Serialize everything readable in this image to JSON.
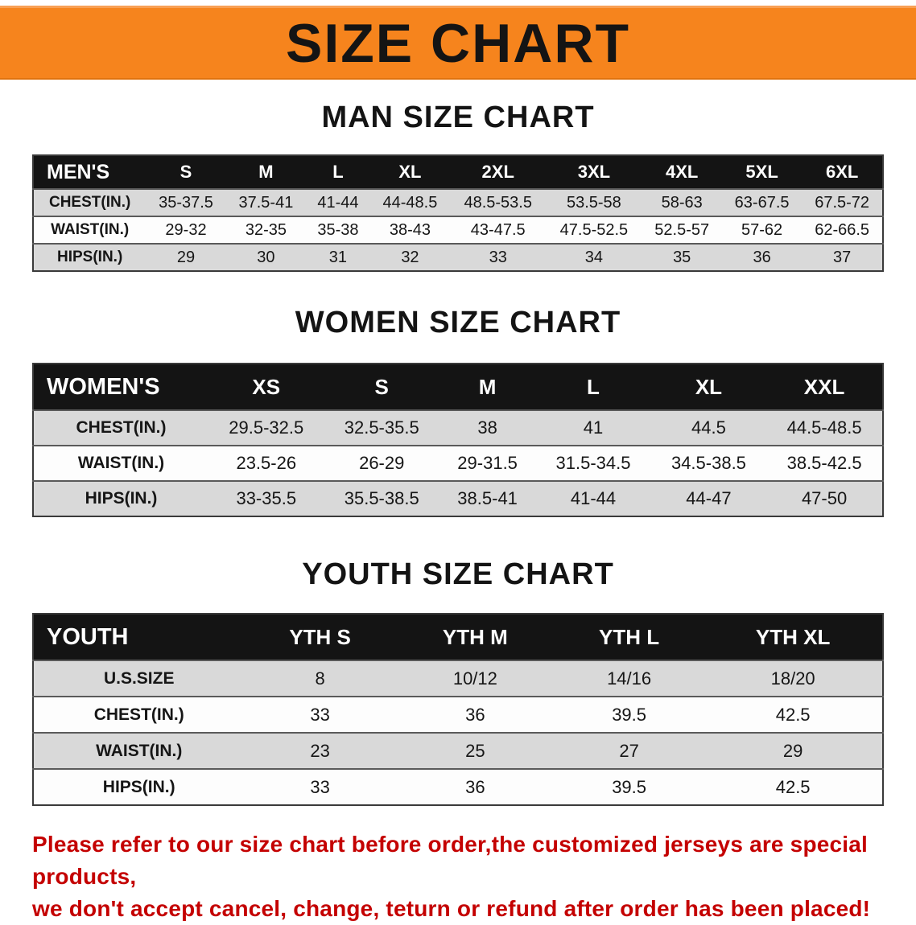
{
  "banner": {
    "title": "SIZE CHART"
  },
  "colors": {
    "banner_orange": "#f6841d",
    "table_header_black": "#141414",
    "row_gray": "#d9d9d9",
    "disclaimer_red": "#c40000"
  },
  "sections": {
    "men": {
      "heading": "MAN SIZE CHART",
      "header": [
        "MEN'S",
        "S",
        "M",
        "L",
        "XL",
        "2XL",
        "3XL",
        "4XL",
        "5XL",
        "6XL"
      ],
      "rows": [
        [
          "CHEST(IN.)",
          "35-37.5",
          "37.5-41",
          "41-44",
          "44-48.5",
          "48.5-53.5",
          "53.5-58",
          "58-63",
          "63-67.5",
          "67.5-72"
        ],
        [
          "WAIST(IN.)",
          "29-32",
          "32-35",
          "35-38",
          "38-43",
          "43-47.5",
          "47.5-52.5",
          "52.5-57",
          "57-62",
          "62-66.5"
        ],
        [
          "HIPS(IN.)",
          "29",
          "30",
          "31",
          "32",
          "33",
          "34",
          "35",
          "36",
          "37"
        ]
      ]
    },
    "women": {
      "heading": "WOMEN SIZE CHART",
      "header": [
        "WOMEN'S",
        "XS",
        "S",
        "M",
        "L",
        "XL",
        "XXL"
      ],
      "rows": [
        [
          "CHEST(IN.)",
          "29.5-32.5",
          "32.5-35.5",
          "38",
          "41",
          "44.5",
          "44.5-48.5"
        ],
        [
          "WAIST(IN.)",
          "23.5-26",
          "26-29",
          "29-31.5",
          "31.5-34.5",
          "34.5-38.5",
          "38.5-42.5"
        ],
        [
          "HIPS(IN.)",
          "33-35.5",
          "35.5-38.5",
          "38.5-41",
          "41-44",
          "44-47",
          "47-50"
        ]
      ]
    },
    "youth": {
      "heading": "YOUTH SIZE CHART",
      "header": [
        "YOUTH",
        "YTH S",
        "YTH M",
        "YTH L",
        "YTH XL"
      ],
      "rows": [
        [
          "U.S.SIZE",
          "8",
          "10/12",
          "14/16",
          "18/20"
        ],
        [
          "CHEST(IN.)",
          "33",
          "36",
          "39.5",
          "42.5"
        ],
        [
          "WAIST(IN.)",
          "23",
          "25",
          "27",
          "29"
        ],
        [
          "HIPS(IN.)",
          "33",
          "36",
          "39.5",
          "42.5"
        ]
      ]
    }
  },
  "disclaimer": {
    "line1": "Please refer to our size chart before order,the customized jerseys are special products,",
    "line2": "we don't accept cancel, change, teturn or refund after order has been placed!"
  }
}
